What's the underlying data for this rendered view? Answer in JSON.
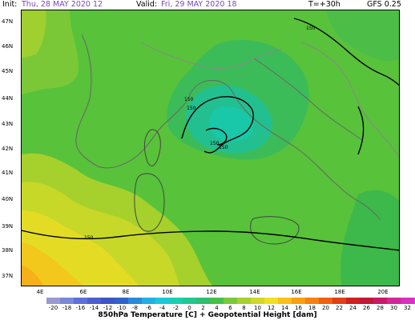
{
  "header": {
    "init_label": "Init:",
    "init_value": "Thu, 28 MAY 2020  12",
    "valid_label": "Valid:",
    "valid_value": "Fri, 29 MAY 2020  18",
    "lead_time": "T=+30h",
    "model": "GFS 0.25"
  },
  "lat_labels": [
    "47N",
    "46N",
    "45N",
    "44N",
    "43N",
    "42N",
    "41N",
    "40N",
    "39N",
    "38N",
    "37N"
  ],
  "lon_labels": [
    "4E",
    "6E",
    "8E",
    "10E",
    "12E",
    "14E",
    "16E",
    "18E",
    "20E"
  ],
  "contour_labels": [
    "150",
    "150",
    "150",
    "150",
    "150",
    "150"
  ],
  "colorbar": {
    "colors": [
      "#9a9ad0",
      "#7a88d8",
      "#5d6fd8",
      "#4e5ccf",
      "#3d55c8",
      "#2f63c8",
      "#2b8ad8",
      "#22b0e0",
      "#1cc8d8",
      "#18d0b0",
      "#20c890",
      "#2cc070",
      "#48c048",
      "#7ac838",
      "#a8d030",
      "#d0d828",
      "#f0e020",
      "#f8c018",
      "#f8a010",
      "#f88010",
      "#f06010",
      "#e04018",
      "#d02020",
      "#c01838",
      "#c81868",
      "#d02898",
      "#d830c0",
      "#e838e0"
    ],
    "ticks": [
      "-20",
      "-18",
      "-16",
      "-14",
      "-12",
      "-10",
      "-8",
      "-6",
      "-4",
      "-2",
      "0",
      "2",
      "4",
      "6",
      "8",
      "10",
      "12",
      "14",
      "16",
      "18",
      "20",
      "22",
      "24",
      "26",
      "28",
      "30",
      "32"
    ],
    "title": "850hPa Temperature [C] + Geopotential Height [dam]"
  }
}
